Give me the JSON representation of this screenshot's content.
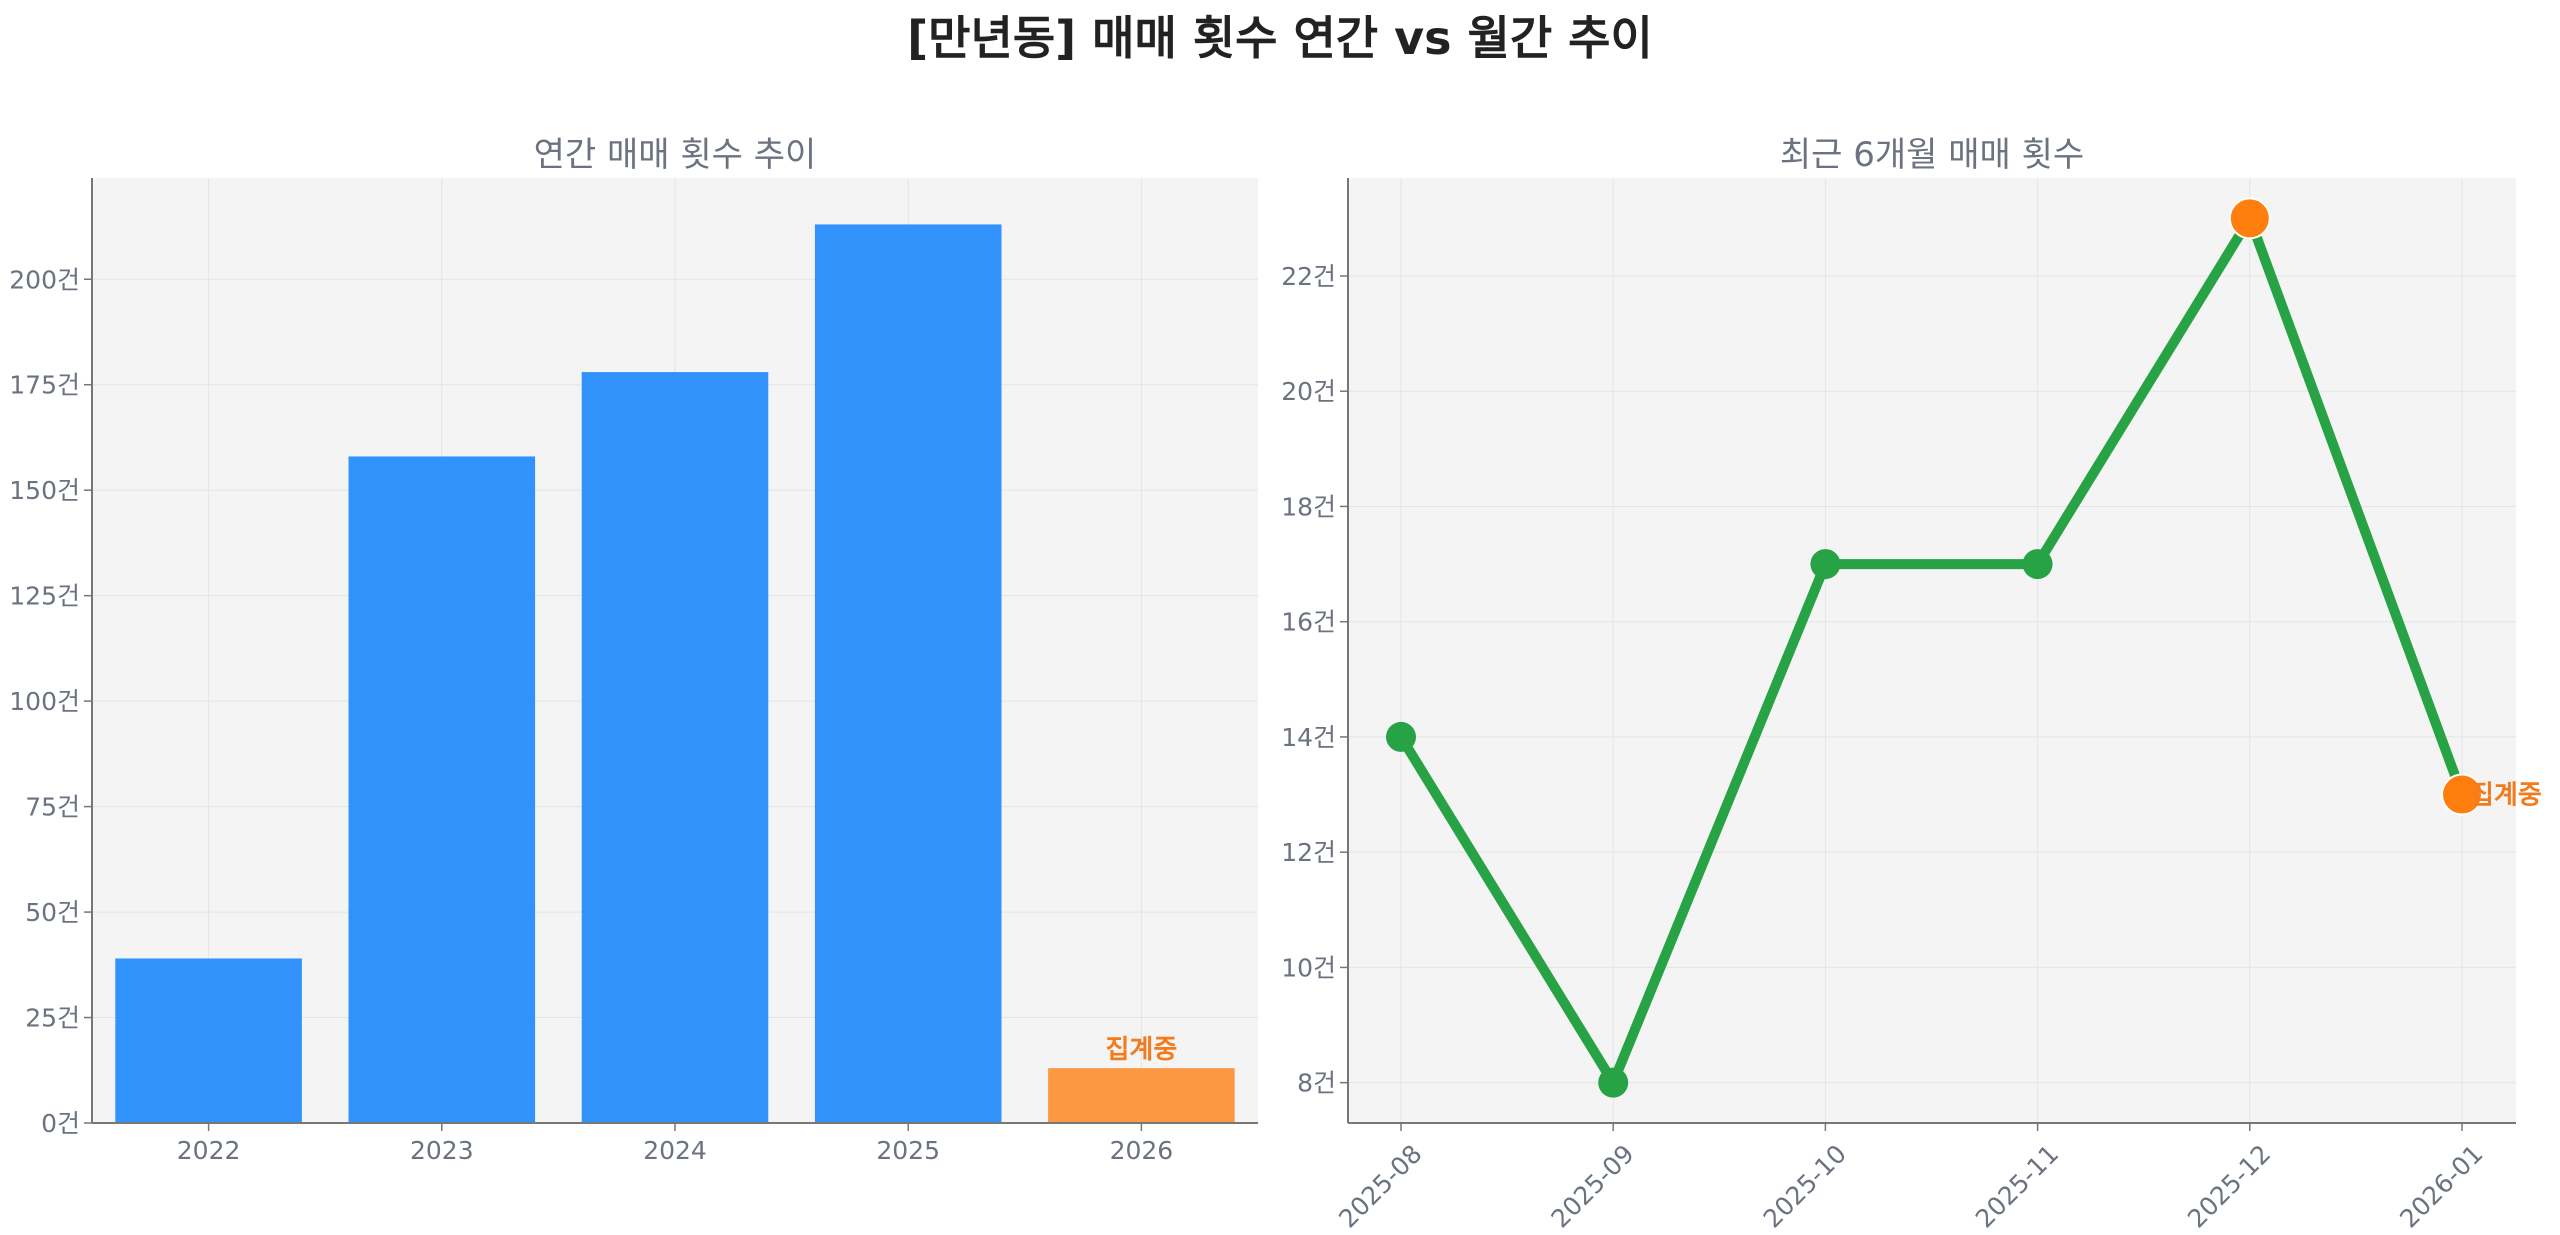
{
  "title": "[만년동] 매매 횟수 연간 vs 월간 추이",
  "chart_data": [
    {
      "type": "bar",
      "title": "연간 매매 횟수 추이",
      "categories": [
        "2022",
        "2023",
        "2024",
        "2025",
        "2026"
      ],
      "values": [
        39,
        158,
        178,
        213,
        13
      ],
      "colors": [
        "#3192fb",
        "#3192fb",
        "#3192fb",
        "#3192fb",
        "#fb9841"
      ],
      "ylim": [
        0,
        224
      ],
      "yticks": [
        0,
        25,
        50,
        75,
        100,
        125,
        150,
        175,
        200
      ],
      "ytick_labels": [
        "0건",
        "25건",
        "50건",
        "75건",
        "100건",
        "125건",
        "150건",
        "175건",
        "200건"
      ],
      "annotation": {
        "category": "2026",
        "text": "집계중",
        "color": "#f47b1c"
      },
      "grid": true
    },
    {
      "type": "line",
      "title": "최근 6개월 매매 횟수",
      "x": [
        "2025-08",
        "2025-09",
        "2025-10",
        "2025-11",
        "2025-12",
        "2026-01"
      ],
      "values": [
        14,
        8,
        17,
        17,
        23,
        13
      ],
      "line_color": "#27a244",
      "highlight_color": "#ff7f0e",
      "highlight_indices": [
        4,
        5
      ],
      "ylim": [
        7.3,
        23.7
      ],
      "yticks": [
        8,
        10,
        12,
        14,
        16,
        18,
        20,
        22
      ],
      "ytick_labels": [
        "8건",
        "10건",
        "12건",
        "14건",
        "16건",
        "18건",
        "20건",
        "22건"
      ],
      "annotation": {
        "index": 5,
        "text": "집계중",
        "color": "#f47b1c"
      },
      "grid": true
    }
  ]
}
